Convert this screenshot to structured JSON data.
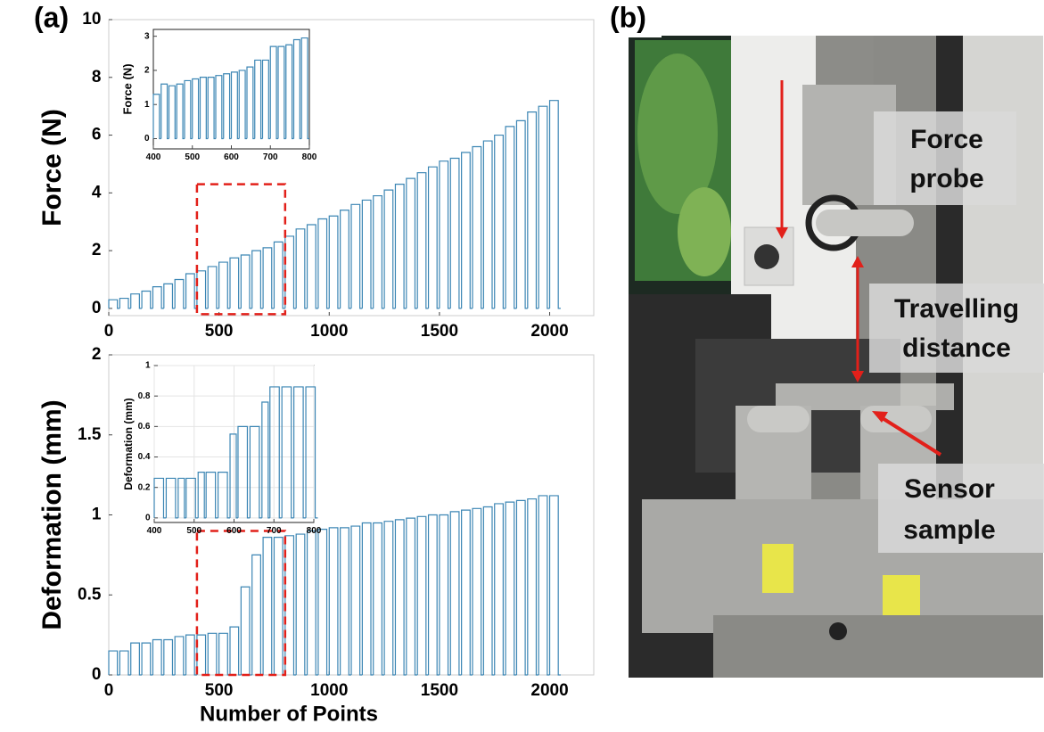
{
  "panels": {
    "a": "(a)",
    "b": "(b)"
  },
  "chart_data": [
    {
      "type": "pulse",
      "ylabel": "Force (N)",
      "color": "#3c86b4",
      "grid": false,
      "x": [
        0,
        50,
        100,
        150,
        200,
        250,
        300,
        350,
        400,
        450,
        500,
        550,
        600,
        650,
        700,
        750,
        800,
        850,
        900,
        950,
        1000,
        1050,
        1100,
        1150,
        1200,
        1250,
        1300,
        1350,
        1400,
        1450,
        1500,
        1550,
        1600,
        1650,
        1700,
        1750,
        1800,
        1850,
        1900,
        1950,
        2000
      ],
      "values": [
        0.3,
        0.35,
        0.5,
        0.6,
        0.75,
        0.85,
        1.0,
        1.2,
        1.3,
        1.45,
        1.6,
        1.75,
        1.85,
        2.0,
        2.1,
        2.3,
        2.5,
        2.75,
        2.9,
        3.1,
        3.2,
        3.4,
        3.6,
        3.75,
        3.9,
        4.1,
        4.3,
        4.5,
        4.7,
        4.9,
        5.1,
        5.2,
        5.4,
        5.6,
        5.8,
        6.0,
        6.3,
        6.5,
        6.8,
        7.0,
        7.2
      ],
      "xlim": [
        0,
        2200
      ],
      "ylim": [
        -0.25,
        10
      ],
      "xticks": [
        0,
        500,
        1000,
        1500,
        2000
      ],
      "yticks": [
        0,
        2,
        4,
        6,
        8,
        10
      ],
      "zoom_box": {
        "x": [
          400,
          800
        ],
        "y": [
          -0.2,
          4.3
        ]
      }
    },
    {
      "type": "pulse",
      "ylabel": "Force (N)",
      "color": "#3c86b4",
      "grid": false,
      "x": [
        400,
        420,
        440,
        460,
        480,
        500,
        520,
        540,
        560,
        580,
        600,
        620,
        640,
        660,
        680,
        700,
        720,
        740,
        760,
        780
      ],
      "values": [
        1.3,
        1.6,
        1.55,
        1.6,
        1.7,
        1.75,
        1.8,
        1.8,
        1.85,
        1.9,
        1.95,
        2.0,
        2.1,
        2.3,
        2.3,
        2.7,
        2.7,
        2.75,
        2.9,
        2.95
      ],
      "xlim": [
        400,
        800
      ],
      "ylim": [
        -0.3,
        3.2
      ],
      "xticks": [
        400,
        500,
        600,
        700,
        800
      ],
      "yticks": [
        0,
        1,
        2,
        3
      ]
    },
    {
      "type": "pulse",
      "ylabel": "Deformation (mm)",
      "xlabel": "Number of Points",
      "color": "#3c86b4",
      "grid": false,
      "x": [
        0,
        50,
        100,
        150,
        200,
        250,
        300,
        350,
        400,
        450,
        500,
        550,
        600,
        650,
        700,
        750,
        800,
        850,
        900,
        950,
        1000,
        1050,
        1100,
        1150,
        1200,
        1250,
        1300,
        1350,
        1400,
        1450,
        1500,
        1550,
        1600,
        1650,
        1700,
        1750,
        1800,
        1850,
        1900,
        1950,
        2000
      ],
      "values": [
        0.15,
        0.15,
        0.2,
        0.2,
        0.22,
        0.22,
        0.24,
        0.25,
        0.25,
        0.26,
        0.26,
        0.3,
        0.55,
        0.75,
        0.86,
        0.86,
        0.87,
        0.88,
        0.9,
        0.91,
        0.92,
        0.92,
        0.93,
        0.95,
        0.95,
        0.96,
        0.97,
        0.98,
        0.99,
        1.0,
        1.0,
        1.02,
        1.03,
        1.04,
        1.05,
        1.07,
        1.08,
        1.09,
        1.1,
        1.12,
        1.12
      ],
      "xlim": [
        0,
        2200
      ],
      "ylim": [
        0,
        2
      ],
      "xticks": [
        0,
        500,
        1000,
        1500,
        2000
      ],
      "yticks": [
        0,
        0.5,
        1,
        1.5,
        2
      ],
      "zoom_box": {
        "x": [
          400,
          800
        ],
        "y": [
          0,
          0.9
        ]
      }
    },
    {
      "type": "pulse",
      "ylabel": "Deformation (mm)",
      "color": "#3c86b4",
      "grid": true,
      "x": [
        400,
        430,
        460,
        480,
        510,
        530,
        560,
        590,
        610,
        640,
        670,
        690,
        720,
        750,
        780
      ],
      "values": [
        0.26,
        0.26,
        0.26,
        0.26,
        0.3,
        0.3,
        0.3,
        0.55,
        0.6,
        0.6,
        0.76,
        0.86,
        0.86,
        0.86,
        0.86
      ],
      "xlim": [
        400,
        800
      ],
      "ylim": [
        -0.03,
        1
      ],
      "xticks": [
        400,
        500,
        600,
        700,
        800
      ],
      "yticks": [
        0,
        0.2,
        0.4,
        0.6,
        0.8,
        1
      ]
    }
  ],
  "photo_labels": [
    [
      "Force",
      "probe"
    ],
    [
      "Travelling",
      "distance"
    ],
    [
      "Sensor",
      "sample"
    ]
  ]
}
